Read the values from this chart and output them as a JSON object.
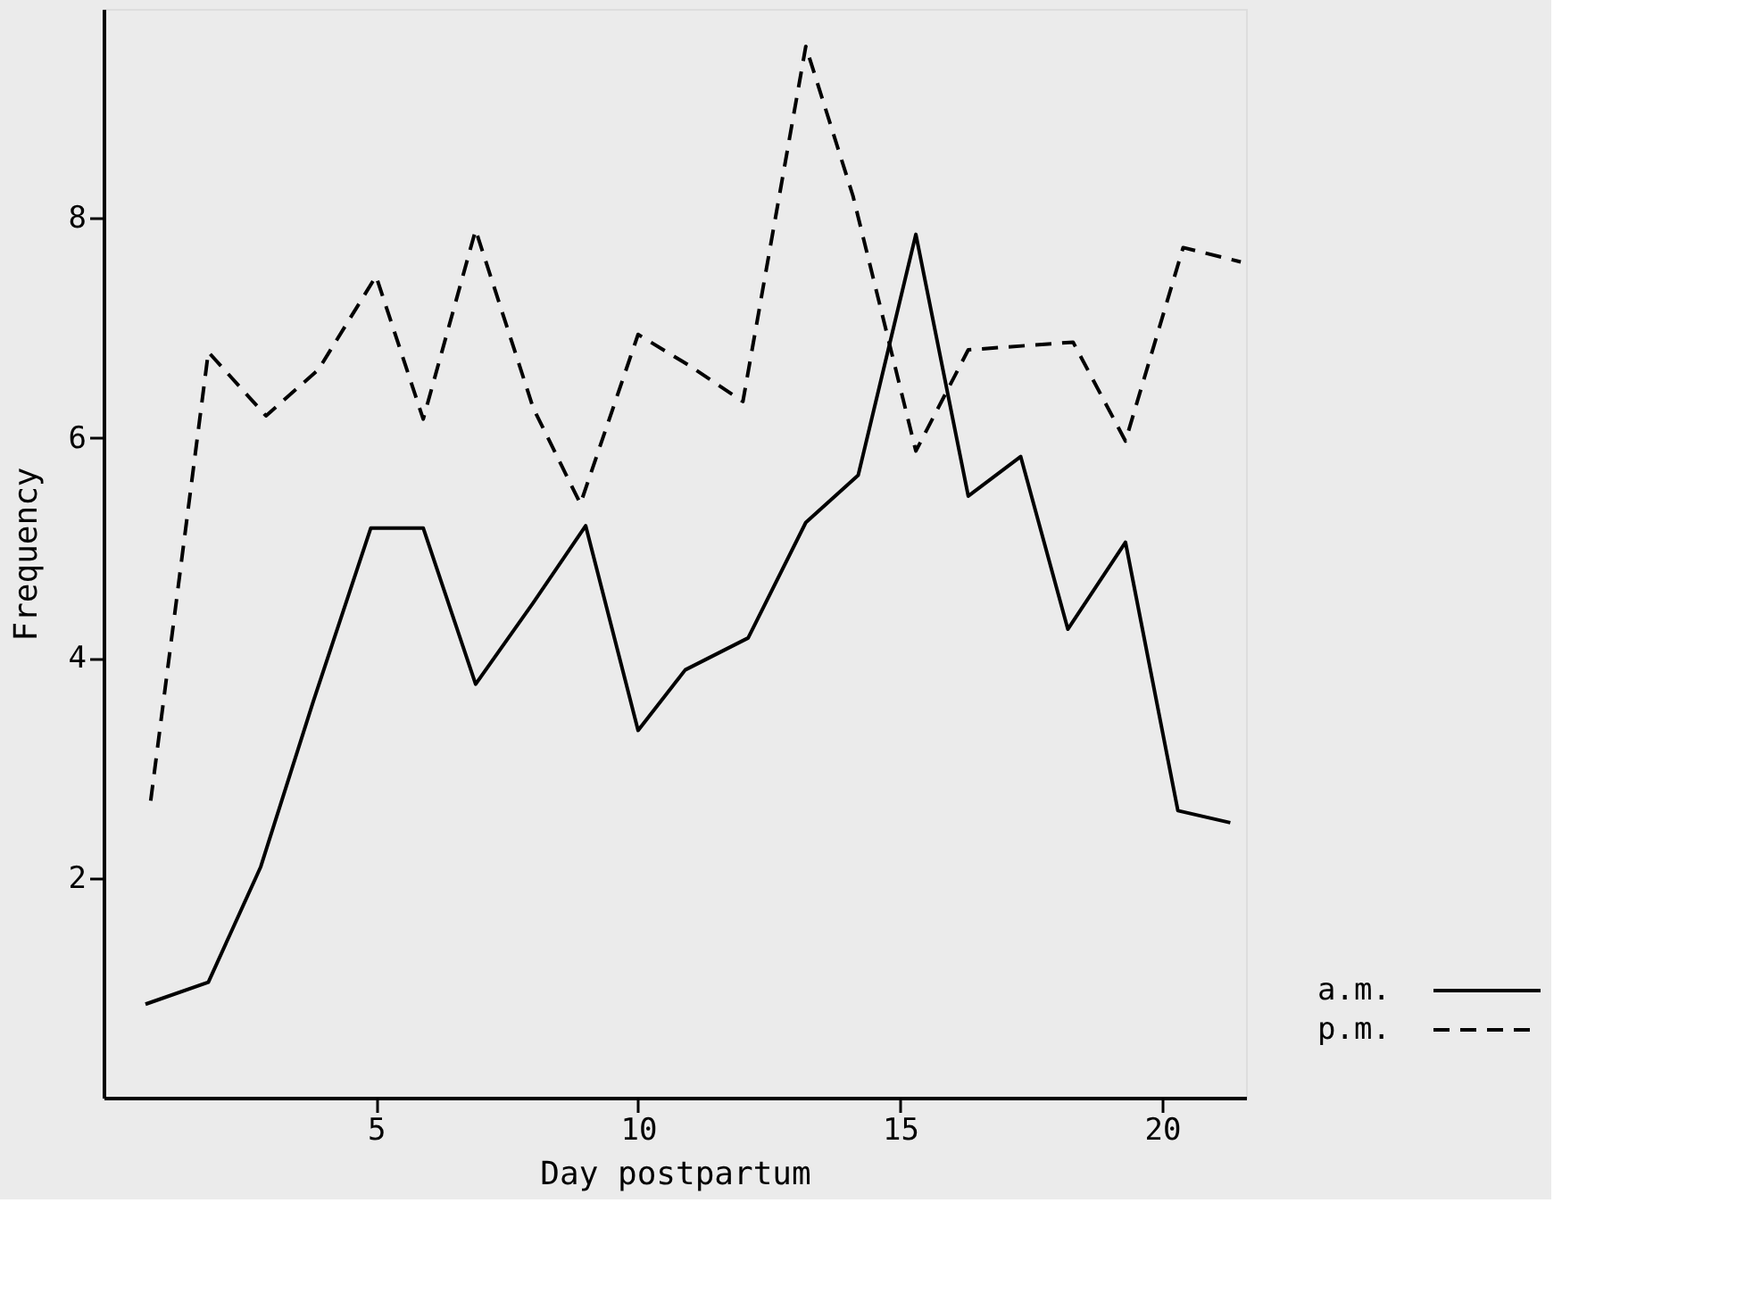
{
  "chart_data": {
    "type": "line",
    "xlabel": "Day postpartum",
    "ylabel": "Frequency",
    "xlim": [
      -0.2,
      21.6
    ],
    "ylim": [
      0,
      9.9
    ],
    "xticks": [
      5,
      10,
      15,
      20
    ],
    "yticks": [
      2,
      4,
      6,
      8
    ],
    "grid": false,
    "legend": "bottom right",
    "marker": "none",
    "series": [
      {
        "name": "a.m.",
        "color": "#000000",
        "line_style": "solid",
        "x": [
          0.6,
          1.8,
          2.8,
          3.8,
          4.9,
          5.9,
          6.9,
          8.0,
          9.0,
          10.0,
          10.9,
          12.1,
          13.2,
          14.2,
          15.3,
          16.3,
          17.3,
          18.2,
          19.3,
          20.3,
          21.3
        ],
        "values": [
          0.85,
          1.05,
          2.1,
          3.6,
          5.18,
          5.18,
          3.76,
          4.5,
          5.2,
          3.34,
          3.89,
          4.18,
          5.23,
          5.66,
          7.85,
          5.47,
          5.83,
          4.26,
          5.05,
          2.61,
          2.5
        ]
      },
      {
        "name": "p.m.",
        "color": "#000000",
        "line_style": "dashed",
        "x": [
          0.7,
          1.8,
          2.9,
          3.9,
          5.0,
          5.9,
          6.9,
          8.0,
          8.9,
          10.0,
          11.0,
          12.0,
          13.2,
          14.1,
          15.3,
          16.3,
          18.3,
          19.3,
          20.4,
          21.5
        ],
        "values": [
          2.7,
          6.78,
          6.2,
          6.62,
          7.47,
          6.17,
          7.89,
          6.27,
          5.4,
          6.94,
          6.65,
          6.33,
          9.56,
          8.2,
          5.88,
          6.8,
          6.87,
          5.97,
          7.73,
          7.6
        ]
      }
    ]
  }
}
